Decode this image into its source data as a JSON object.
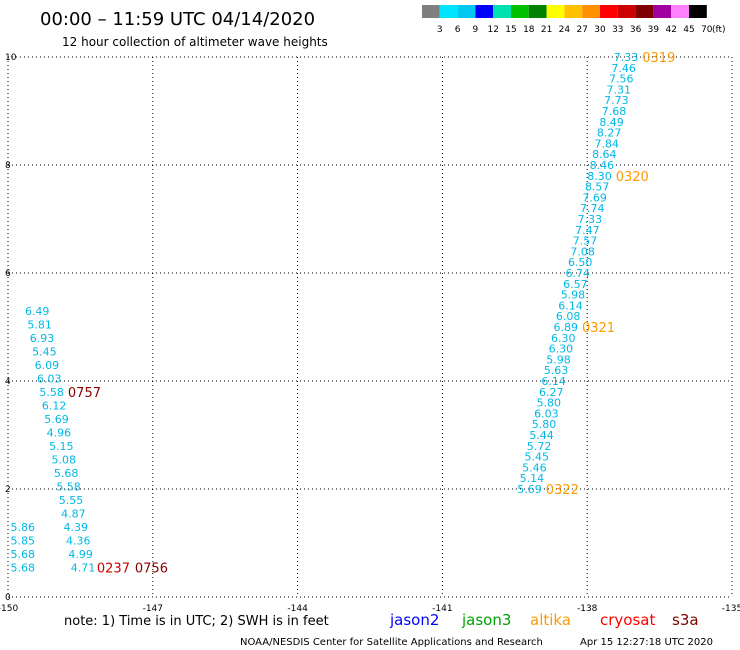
{
  "header": {
    "title": "00:00 – 11:59 UTC 04/14/2020",
    "subtitle": "12 hour collection of altimeter wave heights"
  },
  "legend": {
    "labels": [
      "3",
      "6",
      "9",
      "12",
      "15",
      "18",
      "21",
      "24",
      "27",
      "30",
      "33",
      "36",
      "39",
      "42",
      "45",
      "70"
    ],
    "unit": "(ft)",
    "colors": [
      "#7f7f7f",
      "#00e5ff",
      "#00c8f0",
      "#0000ff",
      "#00e0b0",
      "#00c000",
      "#008000",
      "#ffff00",
      "#ffc000",
      "#ff9000",
      "#ff0000",
      "#cc0000",
      "#800000",
      "#a000a0",
      "#ff80ff",
      "#000000"
    ]
  },
  "footer": {
    "note": "note: 1) Time is in UTC; 2) SWH is in feet",
    "credit": "NOAA/NESDIS Center for Satellite Applications and Research",
    "timestamp": "Apr 15 12:27:18 UTC 2020",
    "satellites": [
      {
        "name": "jason2",
        "color": "#0000ff"
      },
      {
        "name": "jason3",
        "color": "#00a000"
      },
      {
        "name": "altika",
        "color": "#ff9900"
      },
      {
        "name": "cryosat",
        "color": "#ff0000"
      },
      {
        "name": "s3a",
        "color": "#800000"
      }
    ]
  },
  "colors": {
    "swh": "#00b8e6",
    "orange": "#ff9900",
    "maroon": "#880000",
    "grid": "#000000"
  },
  "chart_data": {
    "type": "scatter",
    "xlim": [
      -150,
      -135
    ],
    "ylim": [
      0,
      10
    ],
    "xticks": [
      "-150",
      "-147",
      "-144",
      "-141",
      "-138",
      "-135"
    ],
    "yticks": [
      "0",
      "2",
      "4",
      "6",
      "8",
      "10"
    ],
    "grid": true,
    "series": [
      {
        "points": [
          {
            "x": -136.9,
            "y": 10.0,
            "v": "7.33"
          },
          {
            "x": -136.95,
            "y": 9.8,
            "v": "7.46"
          },
          {
            "x": -137.0,
            "y": 9.6,
            "v": "7.56"
          },
          {
            "x": -137.05,
            "y": 9.4,
            "v": "7.31"
          },
          {
            "x": -137.1,
            "y": 9.2,
            "v": "7.73"
          },
          {
            "x": -137.15,
            "y": 9.0,
            "v": "7.68"
          },
          {
            "x": -137.2,
            "y": 8.8,
            "v": "8.49"
          },
          {
            "x": -137.25,
            "y": 8.6,
            "v": "8.27"
          },
          {
            "x": -137.3,
            "y": 8.4,
            "v": "7.84"
          },
          {
            "x": -137.35,
            "y": 8.2,
            "v": "8.64"
          },
          {
            "x": -137.4,
            "y": 8.0,
            "v": "8.46"
          },
          {
            "x": -137.45,
            "y": 7.8,
            "v": "8.30"
          },
          {
            "x": -137.5,
            "y": 7.6,
            "v": "8.57"
          },
          {
            "x": -137.55,
            "y": 7.4,
            "v": "7.69"
          },
          {
            "x": -137.6,
            "y": 7.2,
            "v": "7.74"
          },
          {
            "x": -137.65,
            "y": 7.0,
            "v": "7.33"
          },
          {
            "x": -137.7,
            "y": 6.8,
            "v": "7.47"
          },
          {
            "x": -137.75,
            "y": 6.6,
            "v": "7.57"
          },
          {
            "x": -137.8,
            "y": 6.4,
            "v": "7.08"
          },
          {
            "x": -137.85,
            "y": 6.2,
            "v": "6.50"
          },
          {
            "x": -137.9,
            "y": 6.0,
            "v": "6.74"
          },
          {
            "x": -137.95,
            "y": 5.8,
            "v": "6.57"
          },
          {
            "x": -138.0,
            "y": 5.6,
            "v": "5.98"
          },
          {
            "x": -138.05,
            "y": 5.4,
            "v": "6.14"
          },
          {
            "x": -138.1,
            "y": 5.2,
            "v": "6.08"
          },
          {
            "x": -138.15,
            "y": 5.0,
            "v": "6.89"
          },
          {
            "x": -138.2,
            "y": 4.8,
            "v": "6.30"
          },
          {
            "x": -138.25,
            "y": 4.6,
            "v": "6.30"
          },
          {
            "x": -138.3,
            "y": 4.4,
            "v": "5.98"
          },
          {
            "x": -138.35,
            "y": 4.2,
            "v": "5.63"
          },
          {
            "x": -138.4,
            "y": 4.0,
            "v": "6.14"
          },
          {
            "x": -138.45,
            "y": 3.8,
            "v": "6.27"
          },
          {
            "x": -138.5,
            "y": 3.6,
            "v": "5.80"
          },
          {
            "x": -138.55,
            "y": 3.4,
            "v": "6.03"
          },
          {
            "x": -138.6,
            "y": 3.2,
            "v": "5.80"
          },
          {
            "x": -138.65,
            "y": 3.0,
            "v": "5.44"
          },
          {
            "x": -138.7,
            "y": 2.8,
            "v": "5.72"
          },
          {
            "x": -138.75,
            "y": 2.6,
            "v": "5.45"
          },
          {
            "x": -138.8,
            "y": 2.4,
            "v": "5.46"
          },
          {
            "x": -138.85,
            "y": 2.2,
            "v": "5.14"
          },
          {
            "x": -138.9,
            "y": 2.0,
            "v": "5.69"
          },
          {
            "x": -149.1,
            "y": 5.3,
            "v": "6.49"
          },
          {
            "x": -149.05,
            "y": 5.05,
            "v": "5.81"
          },
          {
            "x": -149.0,
            "y": 4.8,
            "v": "6.93"
          },
          {
            "x": -148.95,
            "y": 4.55,
            "v": "5.45"
          },
          {
            "x": -148.9,
            "y": 4.3,
            "v": "6.09"
          },
          {
            "x": -148.85,
            "y": 4.05,
            "v": "6.03"
          },
          {
            "x": -148.8,
            "y": 3.8,
            "v": "5.58"
          },
          {
            "x": -148.75,
            "y": 3.55,
            "v": "6.12"
          },
          {
            "x": -148.7,
            "y": 3.3,
            "v": "5.69"
          },
          {
            "x": -148.65,
            "y": 3.05,
            "v": "4.96"
          },
          {
            "x": -148.6,
            "y": 2.8,
            "v": "5.15"
          },
          {
            "x": -148.55,
            "y": 2.55,
            "v": "5.08"
          },
          {
            "x": -148.5,
            "y": 2.3,
            "v": "5.68"
          },
          {
            "x": -148.45,
            "y": 2.05,
            "v": "5.58"
          },
          {
            "x": -148.4,
            "y": 1.8,
            "v": "5.55"
          },
          {
            "x": -148.35,
            "y": 1.55,
            "v": "4.87"
          },
          {
            "x": -148.3,
            "y": 1.3,
            "v": "4.39"
          },
          {
            "x": -148.25,
            "y": 1.05,
            "v": "4.36"
          },
          {
            "x": -148.2,
            "y": 0.8,
            "v": "4.99"
          },
          {
            "x": -148.15,
            "y": 0.55,
            "v": "4.71"
          },
          {
            "x": -149.4,
            "y": 1.3,
            "v": "5.86"
          },
          {
            "x": -149.4,
            "y": 1.05,
            "v": "5.85"
          },
          {
            "x": -149.4,
            "y": 0.8,
            "v": "5.68"
          },
          {
            "x": -149.4,
            "y": 0.55,
            "v": "5.68"
          }
        ]
      }
    ],
    "time_labels": [
      {
        "x": -136.9,
        "y": 10.0,
        "label": "0319",
        "color": "#ff9900"
      },
      {
        "x": -137.45,
        "y": 7.8,
        "label": "0320",
        "color": "#ff9900"
      },
      {
        "x": -138.15,
        "y": 5.0,
        "label": "0321",
        "color": "#ff9900"
      },
      {
        "x": -138.9,
        "y": 2.0,
        "label": "0322",
        "color": "#ff9900"
      },
      {
        "x": -148.8,
        "y": 3.8,
        "label": "0757",
        "color": "#880000"
      },
      {
        "x": -148.2,
        "y": 0.55,
        "label": "0237",
        "color": "#cc0000"
      },
      {
        "x": -148.2,
        "y": 0.55,
        "label": "0756",
        "color": "#880000"
      }
    ]
  }
}
